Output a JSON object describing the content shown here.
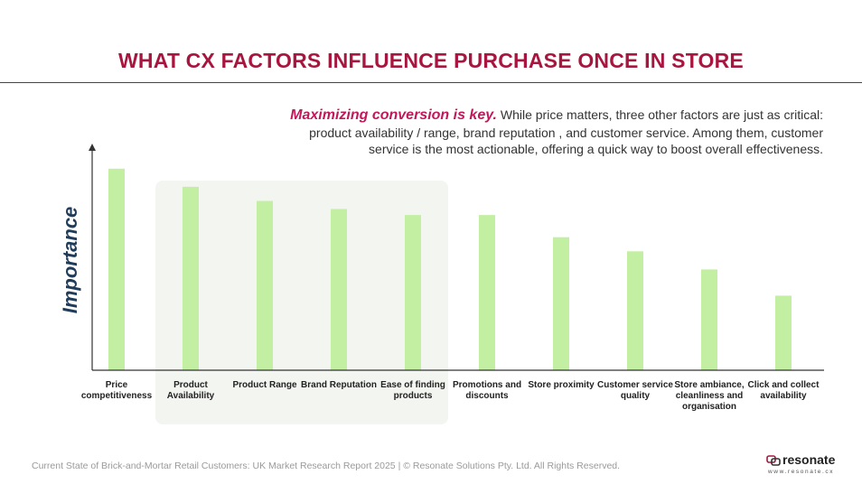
{
  "header": {
    "title": "WHAT CX FACTORS INFLUENCE PURCHASE ONCE IN STORE"
  },
  "callout": {
    "lead": "Maximizing conversion is key.",
    "body": " While price matters, three other factors are just as critical: product availability / range, brand reputation , and customer service. Among them, customer service is the most actionable, offering a quick way to boost overall effectiveness."
  },
  "chart_data": {
    "type": "bar",
    "title": "",
    "xlabel": "",
    "ylabel": "Importance",
    "categories": [
      "Price competitiveness",
      "Product Availability",
      "Product Range",
      "Brand Reputation",
      "Ease of finding products",
      "Promotions and discounts",
      "Store proximity",
      "Customer service quality",
      "Store ambiance, cleanliness and organisation",
      "Click and collect availability"
    ],
    "values": [
      100,
      91,
      84,
      80,
      77,
      77,
      66,
      59,
      50,
      37
    ],
    "ylim": [
      0,
      112
    ],
    "y_tick_labels": "none",
    "grid": false,
    "bar_color": "#c3efa3",
    "highlighted_categories": [
      "Product Availability",
      "Product Range",
      "Brand Reputation",
      "Ease of finding products"
    ],
    "highlight_color": "#f3f5f1"
  },
  "colors": {
    "accent": "#a8163f",
    "callout_lead": "#c2185b",
    "ylabel": "#1f3c5a"
  },
  "footer": {
    "text": "Current State of Brick-and-Mortar Retail Customers: UK Market Research Report 2025 | © Resonate Solutions Pty. Ltd. All Rights Reserved."
  },
  "logo": {
    "name": "resonate",
    "url": "www.resonate.cx",
    "icon": "resonate-logo-icon"
  }
}
